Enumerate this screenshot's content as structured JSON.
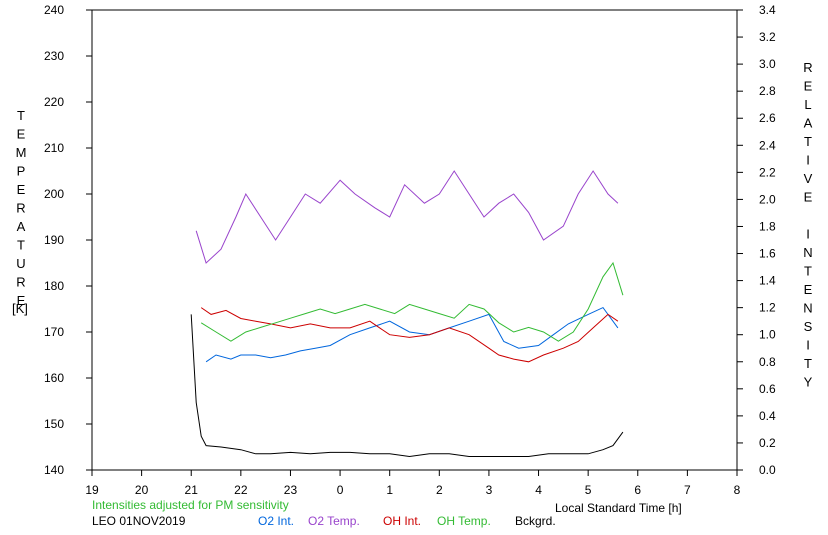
{
  "chart_data": {
    "type": "line",
    "left_axis": {
      "label": "TEMPERATURE",
      "unit": "[K]",
      "range": [
        140,
        240
      ],
      "ticks": [
        "140",
        "150",
        "160",
        "170",
        "180",
        "190",
        "200",
        "210",
        "220",
        "230",
        "240"
      ]
    },
    "right_axis": {
      "label": "RELATIVE INTENSITY",
      "range": [
        0.0,
        3.4
      ],
      "ticks": [
        "0.0",
        "0.2",
        "0.4",
        "0.6",
        "0.8",
        "1.0",
        "1.2",
        "1.4",
        "1.6",
        "1.8",
        "2.0",
        "2.2",
        "2.4",
        "2.6",
        "2.8",
        "3.0",
        "3.2",
        "3.4"
      ]
    },
    "x_axis": {
      "label": "Local Standard Time [h]",
      "ticks": [
        "19",
        "20",
        "21",
        "22",
        "23",
        "0",
        "1",
        "2",
        "3",
        "4",
        "5",
        "6",
        "7",
        "8"
      ]
    },
    "note": "Intensities adjusted for PM sensitivity",
    "station": "LEO 01NOV2019",
    "grid": false,
    "series": [
      {
        "name": "O2 Int.",
        "color": "#0066dd",
        "axis": "right",
        "x": [
          21.3,
          21.5,
          21.8,
          22.0,
          22.3,
          22.6,
          22.9,
          23.2,
          23.5,
          23.8,
          24.2,
          24.6,
          25.0,
          25.4,
          25.8,
          26.2,
          26.6,
          27.0,
          27.3,
          27.6,
          28.0,
          28.3,
          28.6,
          29.0,
          29.3,
          29.6
        ],
        "y": [
          0.8,
          0.85,
          0.82,
          0.85,
          0.85,
          0.83,
          0.85,
          0.88,
          0.9,
          0.92,
          1.0,
          1.05,
          1.1,
          1.02,
          1.0,
          1.05,
          1.1,
          1.15,
          0.95,
          0.9,
          0.92,
          1.0,
          1.08,
          1.15,
          1.2,
          1.05
        ]
      },
      {
        "name": "O2 Temp.",
        "color": "#9944cc",
        "axis": "left",
        "x": [
          21.1,
          21.3,
          21.6,
          21.9,
          22.1,
          22.4,
          22.7,
          23.0,
          23.3,
          23.6,
          24.0,
          24.3,
          24.7,
          25.0,
          25.3,
          25.7,
          26.0,
          26.3,
          26.6,
          26.9,
          27.2,
          27.5,
          27.8,
          28.1,
          28.5,
          28.8,
          29.1,
          29.4,
          29.6
        ],
        "y": [
          192,
          185,
          188,
          195,
          200,
          195,
          190,
          195,
          200,
          198,
          203,
          200,
          197,
          195,
          202,
          198,
          200,
          205,
          200,
          195,
          198,
          200,
          196,
          190,
          193,
          200,
          205,
          200,
          198
        ]
      },
      {
        "name": "OH Int.",
        "color": "#cc0000",
        "axis": "right",
        "x": [
          21.2,
          21.4,
          21.7,
          22.0,
          22.3,
          22.6,
          23.0,
          23.4,
          23.8,
          24.2,
          24.6,
          25.0,
          25.4,
          25.8,
          26.2,
          26.6,
          27.0,
          27.2,
          27.5,
          27.8,
          28.1,
          28.5,
          28.8,
          29.1,
          29.4,
          29.6
        ],
        "y": [
          1.2,
          1.15,
          1.18,
          1.12,
          1.1,
          1.08,
          1.05,
          1.08,
          1.05,
          1.05,
          1.1,
          1.0,
          0.98,
          1.0,
          1.05,
          1.0,
          0.9,
          0.85,
          0.82,
          0.8,
          0.85,
          0.9,
          0.95,
          1.05,
          1.15,
          1.1
        ]
      },
      {
        "name": "OH Temp.",
        "color": "#33bb33",
        "axis": "left",
        "x": [
          21.2,
          21.5,
          21.8,
          22.1,
          22.4,
          22.7,
          23.0,
          23.3,
          23.6,
          23.9,
          24.2,
          24.5,
          24.8,
          25.1,
          25.4,
          25.7,
          26.0,
          26.3,
          26.6,
          26.9,
          27.2,
          27.5,
          27.8,
          28.1,
          28.4,
          28.7,
          29.0,
          29.3,
          29.5,
          29.7
        ],
        "y": [
          172,
          170,
          168,
          170,
          171,
          172,
          173,
          174,
          175,
          174,
          175,
          176,
          175,
          174,
          176,
          175,
          174,
          173,
          176,
          175,
          172,
          170,
          171,
          170,
          168,
          170,
          175,
          182,
          185,
          178
        ]
      },
      {
        "name": "Bckgrd.",
        "color": "#000000",
        "axis": "right",
        "x": [
          21.0,
          21.1,
          21.2,
          21.3,
          21.6,
          22.0,
          22.3,
          22.6,
          23.0,
          23.4,
          23.8,
          24.2,
          24.6,
          25.0,
          25.4,
          25.8,
          26.2,
          26.6,
          27.0,
          27.4,
          27.8,
          28.2,
          28.6,
          29.0,
          29.3,
          29.5,
          29.7
        ],
        "y": [
          1.15,
          0.5,
          0.25,
          0.18,
          0.17,
          0.15,
          0.12,
          0.12,
          0.13,
          0.12,
          0.13,
          0.13,
          0.12,
          0.12,
          0.1,
          0.12,
          0.12,
          0.1,
          0.1,
          0.1,
          0.1,
          0.12,
          0.12,
          0.12,
          0.15,
          0.18,
          0.28
        ]
      }
    ]
  }
}
